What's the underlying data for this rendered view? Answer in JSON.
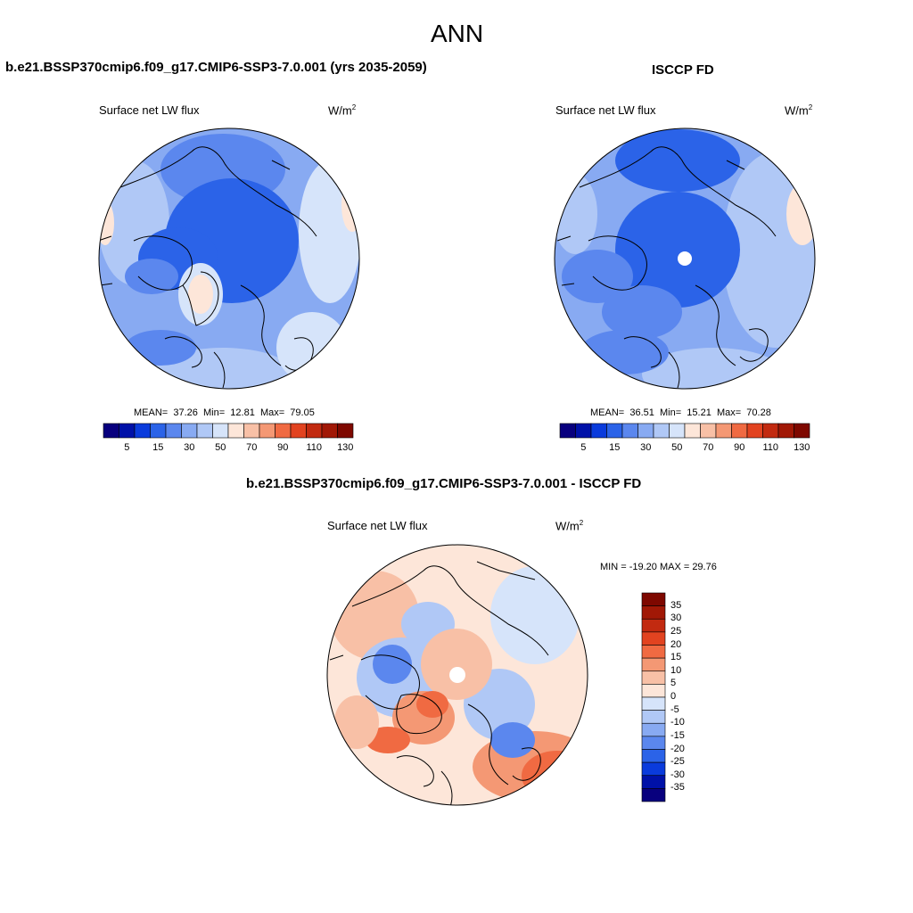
{
  "page_title": "ANN",
  "colors": {
    "seq": [
      "#08007e",
      "#0011a8",
      "#0a3bdc",
      "#2b63e8",
      "#5b87ee",
      "#88aaf2",
      "#b0c8f6",
      "#d6e4fa",
      "#fde6d9",
      "#f8c0a6",
      "#f49874",
      "#f06a42",
      "#e24320",
      "#c22a10",
      "#a11806",
      "#7e0800"
    ],
    "diff": [
      "#08007e",
      "#0011a8",
      "#0a3bdc",
      "#2b63e8",
      "#5b87ee",
      "#88aaf2",
      "#b0c8f6",
      "#d6e4fa",
      "#fde6d9",
      "#f8c0a6",
      "#f49874",
      "#f06a42",
      "#e24320",
      "#c22a10",
      "#a11806",
      "#7e0800"
    ]
  },
  "panels": [
    {
      "id": "model",
      "title": "b.e21.BSSP370cmip6.f09_g17.CMIP6-SSP3-7.0.001 (yrs 2035-2059)",
      "variable": "Surface net LW flux",
      "units_base": "W/m",
      "units_exp": "2",
      "stats": {
        "mean_label": "MEAN=",
        "mean": "37.26",
        "min_label": "Min=",
        "min": "12.81",
        "max_label": "Max=",
        "max": "79.05"
      },
      "colorbar_labels": [
        "5",
        "15",
        "30",
        "50",
        "70",
        "90",
        "110",
        "130"
      ]
    },
    {
      "id": "obs",
      "title": "ISCCP FD",
      "variable": "Surface net LW flux",
      "units_base": "W/m",
      "units_exp": "2",
      "stats": {
        "mean_label": "MEAN=",
        "mean": "36.51",
        "min_label": "Min=",
        "min": "15.21",
        "max_label": "Max=",
        "max": "70.28"
      },
      "colorbar_labels": [
        "5",
        "15",
        "30",
        "50",
        "70",
        "90",
        "110",
        "130"
      ]
    },
    {
      "id": "diff",
      "title": "b.e21.BSSP370cmip6.f09_g17.CMIP6-SSP3-7.0.001 - ISCCP FD",
      "variable": "Surface net LW flux",
      "units_base": "W/m",
      "units_exp": "2",
      "minmax": "MIN = -19.20 MAX =  29.76",
      "colorbar_labels": [
        "35",
        "30",
        "25",
        "20",
        "15",
        "10",
        "5",
        "0",
        "-5",
        "-10",
        "-15",
        "-20",
        "-25",
        "-30",
        "-35"
      ]
    }
  ]
}
